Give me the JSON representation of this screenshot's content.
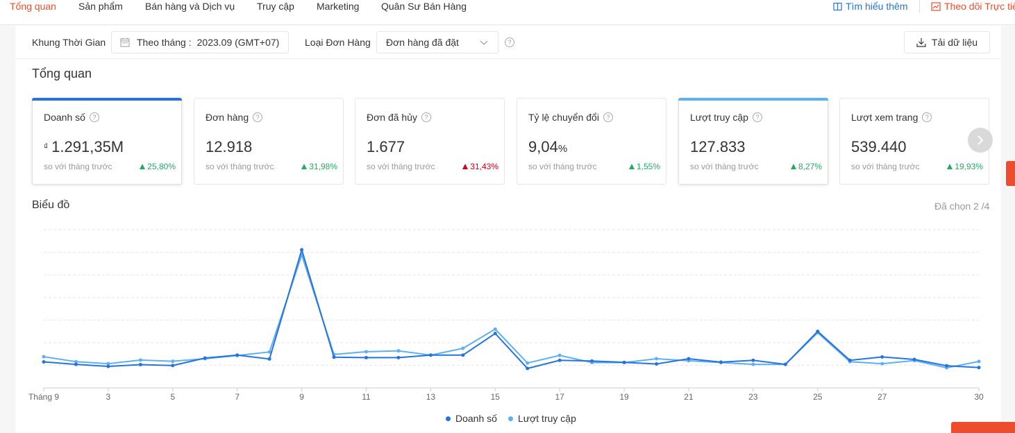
{
  "nav": {
    "tabs": [
      {
        "label": "Tổng quan",
        "active": true
      },
      {
        "label": "Sản phẩm"
      },
      {
        "label": "Bán hàng và Dịch vụ"
      },
      {
        "label": "Truy cập"
      },
      {
        "label": "Marketing"
      },
      {
        "label": "Quân Sư Bán Hàng"
      }
    ],
    "learn_more": "Tìm hiểu thêm",
    "live_track": "Theo dõi Trực tiế"
  },
  "filters": {
    "time_label": "Khung Thời Gian",
    "time_prefix": "Theo tháng :",
    "time_value": "2023.09 (GMT+07)",
    "order_label": "Loại Đơn Hàng",
    "order_value": "Đơn hàng đã đặt",
    "help": "?",
    "download": "Tải dữ liệu"
  },
  "overview": {
    "title": "Tổng quan",
    "compare_text": "so với tháng trước",
    "cards": [
      {
        "title": "Doanh số",
        "currency": "₫",
        "value": "1.291,35M",
        "change": "25,80%",
        "direction": "up",
        "selected": true,
        "bar_color": "#2673dd"
      },
      {
        "title": "Đơn hàng",
        "value": "12.918",
        "change": "31,98%",
        "direction": "up"
      },
      {
        "title": "Đơn đã hủy",
        "value": "1.677",
        "change": "31,43%",
        "direction": "up-bad"
      },
      {
        "title": "Tỷ lệ chuyển đổi",
        "value": "9,04",
        "unit": "%",
        "change": "1,55%",
        "direction": "up"
      },
      {
        "title": "Lượt truy cập",
        "value": "127.833",
        "change": "8,27%",
        "direction": "up",
        "selected": true,
        "bar_color": "#5eb0f0"
      },
      {
        "title": "Lượt xem trang",
        "value": "539.440",
        "change": "19,93%",
        "direction": "up"
      }
    ]
  },
  "chart_section": {
    "title": "Biểu đồ",
    "selected_count": "Đã chọn 2 /4"
  },
  "chart_data": {
    "type": "line",
    "x": [
      1,
      2,
      3,
      4,
      5,
      6,
      7,
      8,
      9,
      10,
      11,
      12,
      13,
      14,
      15,
      16,
      17,
      18,
      19,
      20,
      21,
      22,
      23,
      24,
      25,
      26,
      27,
      28,
      29,
      30
    ],
    "x_tick_labels": [
      "Tháng 9",
      "3",
      "5",
      "7",
      "9",
      "11",
      "13",
      "15",
      "17",
      "19",
      "21",
      "23",
      "25",
      "27",
      "30"
    ],
    "x_tick_values": [
      1,
      3,
      5,
      7,
      9,
      11,
      13,
      15,
      17,
      19,
      21,
      23,
      25,
      27,
      30
    ],
    "y_scale": "relative, no tick labels shown",
    "ylim": [
      0,
      7
    ],
    "grid": "horizontal dashed",
    "legend_position": "bottom-center",
    "series": [
      {
        "name": "Doanh số",
        "color": "#2673dd",
        "values": [
          1.15,
          1.04,
          0.95,
          1.03,
          0.99,
          1.32,
          1.45,
          1.28,
          6.11,
          1.36,
          1.34,
          1.34,
          1.45,
          1.45,
          2.41,
          0.86,
          1.22,
          1.19,
          1.13,
          1.06,
          1.29,
          1.14,
          1.22,
          1.04,
          2.5,
          1.22,
          1.37,
          1.26,
          0.98,
          0.9
        ]
      },
      {
        "name": "Lượt truy cập",
        "color": "#5eb0f0",
        "values": [
          1.38,
          1.16,
          1.07,
          1.23,
          1.18,
          1.29,
          1.43,
          1.59,
          5.88,
          1.48,
          1.6,
          1.64,
          1.45,
          1.75,
          2.6,
          1.1,
          1.44,
          1.12,
          1.12,
          1.29,
          1.2,
          1.12,
          1.04,
          1.04,
          2.44,
          1.16,
          1.07,
          1.21,
          0.89,
          1.17
        ]
      }
    ]
  }
}
